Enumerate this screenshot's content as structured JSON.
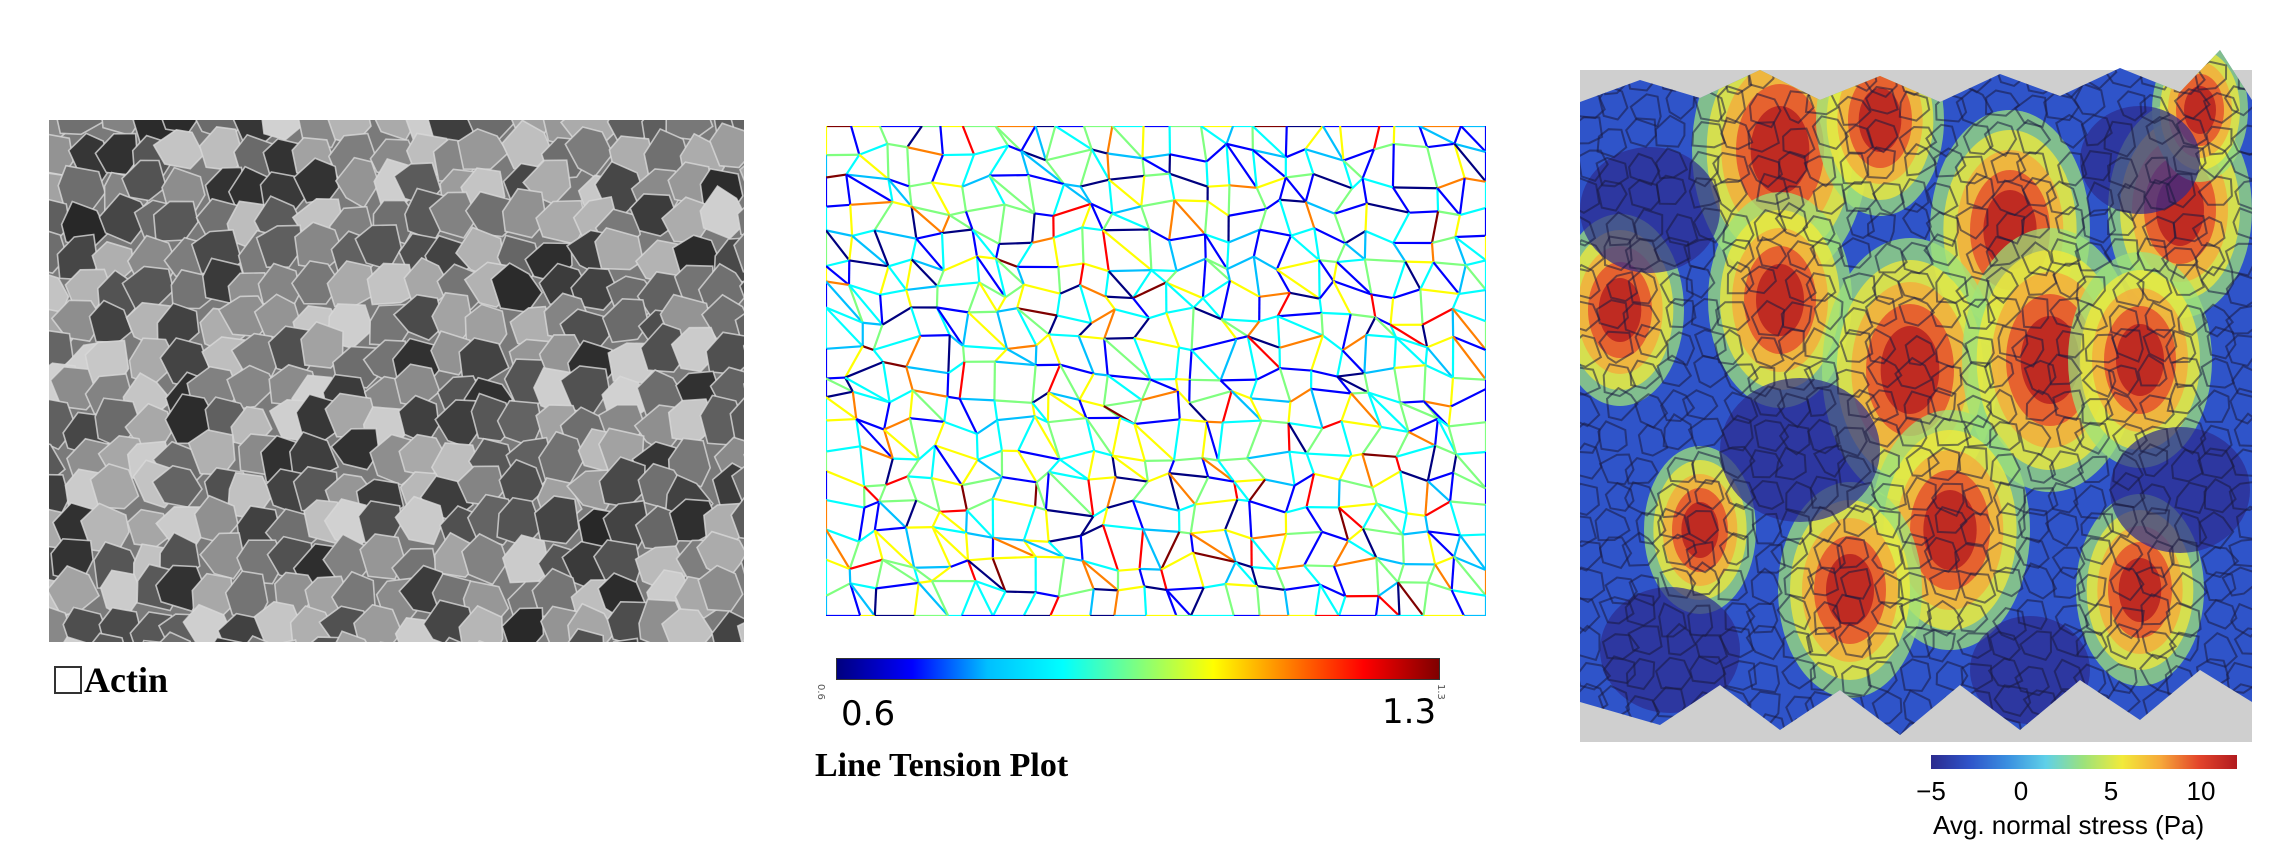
{
  "panels": {
    "actin": {
      "caption_box": "",
      "caption": "Actin"
    },
    "line_tension": {
      "caption": "Line Tension Plot",
      "colorbar": {
        "min_label": "0.6",
        "max_label": "1.3",
        "min_tiny": "0.6",
        "max_tiny": "1.3",
        "colormap": "jet",
        "colors": [
          "#00007f",
          "#0000ff",
          "#00bfff",
          "#00ffff",
          "#7fff7f",
          "#ffff00",
          "#ff7f00",
          "#ff0000",
          "#7f0000"
        ]
      }
    },
    "stress": {
      "colorbar": {
        "ticks": [
          "−5",
          "0",
          "5",
          "10"
        ],
        "tick_values": [
          -5,
          0,
          5,
          10
        ],
        "range": [
          -5,
          12
        ],
        "label": "Avg. normal stress (Pa)",
        "colors": [
          "#2c2b8e",
          "#2f54c9",
          "#3a8fe0",
          "#5fd0e8",
          "#9de27a",
          "#f2ea3a",
          "#f6a83a",
          "#e3452b",
          "#b11a1f"
        ]
      }
    }
  }
}
